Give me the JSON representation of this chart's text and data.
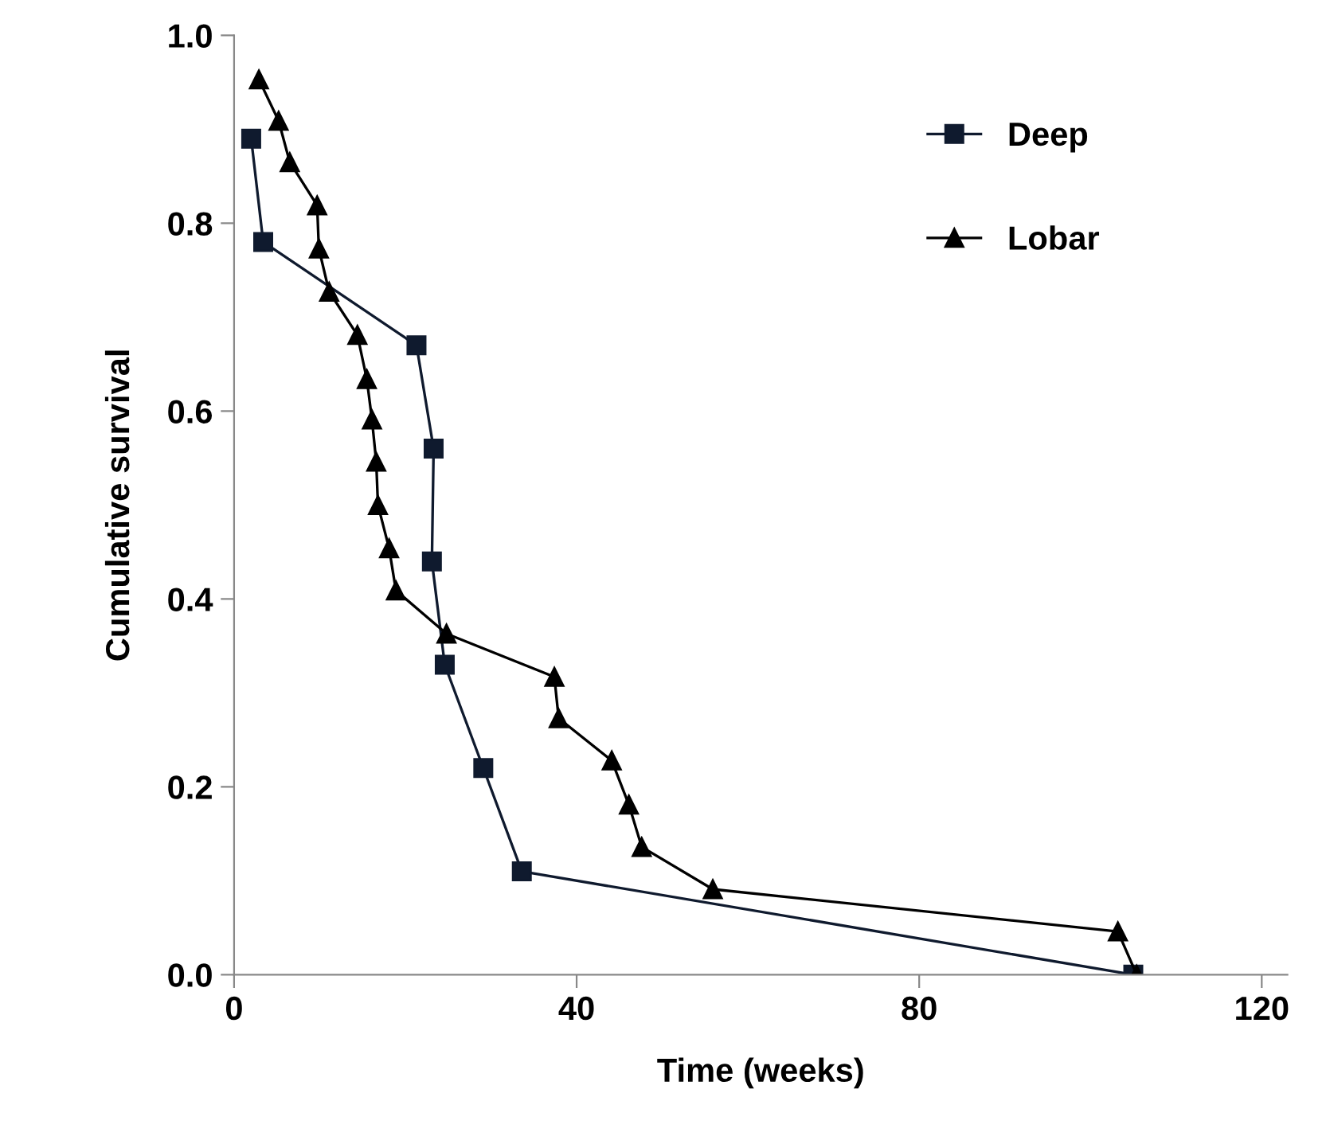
{
  "chart_data": {
    "type": "line",
    "xlabel": "Time (weeks)",
    "ylabel": "Cumulative survival",
    "xlim": [
      0,
      123
    ],
    "xticks": [
      0,
      40,
      80,
      120
    ],
    "ylim": [
      0,
      1
    ],
    "yticks": [
      {
        "value": 0,
        "label": "0.0"
      },
      {
        "value": 0.2,
        "label": "0.2"
      },
      {
        "value": 0.4,
        "label": "0.4"
      },
      {
        "value": 0.6,
        "label": "0.6"
      },
      {
        "value": 0.8,
        "label": "0.8"
      },
      {
        "value": 1,
        "label": "1.0"
      }
    ],
    "grid": false,
    "legend": "top right",
    "line_style": "solid",
    "series": [
      {
        "name": "Deep",
        "color": "#0f1a2e",
        "marker": "square",
        "x": [
          2.0,
          3.4,
          21.3,
          23.3,
          23.1,
          24.6,
          29.1,
          33.6,
          105.0
        ],
        "values": [
          0.89,
          0.78,
          0.67,
          0.56,
          0.44,
          0.33,
          0.22,
          0.11,
          0.0
        ]
      },
      {
        "name": "Lobar",
        "color": "#000000",
        "marker": "triangle",
        "x": [
          2.9,
          5.2,
          6.5,
          9.7,
          9.9,
          11.1,
          14.4,
          15.5,
          16.1,
          16.6,
          16.8,
          18.1,
          18.9,
          24.8,
          37.4,
          37.9,
          44.1,
          46.1,
          47.6,
          55.9,
          103.2,
          105.4
        ],
        "values": [
          0.953,
          0.909,
          0.865,
          0.819,
          0.773,
          0.727,
          0.681,
          0.634,
          0.591,
          0.546,
          0.5,
          0.454,
          0.409,
          0.363,
          0.317,
          0.273,
          0.228,
          0.181,
          0.136,
          0.091,
          0.046,
          0.0
        ]
      }
    ]
  }
}
